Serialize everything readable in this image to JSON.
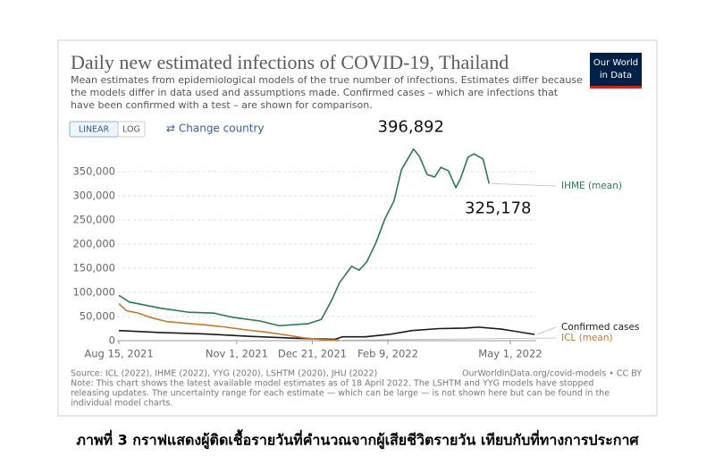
{
  "chart_data": {
    "type": "line",
    "title": "Daily new estimated infections of COVID-19, Thailand",
    "subtitle": [
      "Mean estimates from epidemiological models of the true number of infections. Estimates differ because",
      "the models differ in data used and assumptions made. Confirmed cases – which are infections that",
      "have been confirmed with a test – are shown for comparison."
    ],
    "logo": [
      "Our World",
      "in Data"
    ],
    "buttons": [
      "LINEAR",
      "LOG"
    ],
    "change_country": "⇄ Change country",
    "xlim": [
      "2021-08-15",
      "2022-05-17"
    ],
    "xticks": [
      {
        "value": "2021-08-15",
        "label": "Aug 15, 2021"
      },
      {
        "value": "2021-11-01",
        "label": "Nov 1, 2021"
      },
      {
        "value": "2021-12-21",
        "label": "Dec 21, 2021"
      },
      {
        "value": "2022-02-09",
        "label": "Feb 9, 2022"
      },
      {
        "value": "2022-05-01",
        "label": "May 1, 2022"
      }
    ],
    "ylim": [
      0,
      400000
    ],
    "yticks": [
      0,
      {
        "value": 50000,
        "label": "50,000"
      },
      {
        "value": 100000,
        "label": "100,000"
      },
      {
        "value": 150000,
        "label": "150,000"
      },
      {
        "value": 200000,
        "label": "200,000"
      },
      {
        "value": 250000,
        "label": "250,000"
      },
      {
        "value": 300000,
        "label": "300,000"
      },
      {
        "value": 350000,
        "label": "350,000"
      }
    ],
    "grid": true,
    "series": [
      {
        "name": "IHME (mean)",
        "color": "#2a7a4f",
        "x": [
          "2021-08-15",
          "2021-08-22",
          "2021-09-12",
          "2021-09-30",
          "2021-10-17",
          "2021-10-30",
          "2021-11-16",
          "2021-11-29",
          "2021-12-18",
          "2021-12-27",
          "2022-01-03",
          "2022-01-08",
          "2022-01-16",
          "2022-01-21",
          "2022-01-26",
          "2022-02-01",
          "2022-02-07",
          "2022-02-13",
          "2022-02-18",
          "2022-02-26",
          "2022-03-02",
          "2022-03-07",
          "2022-03-12",
          "2022-03-16",
          "2022-03-21",
          "2022-03-26",
          "2022-03-29",
          "2022-04-03",
          "2022-04-07",
          "2022-04-13",
          "2022-04-17"
        ],
        "values": [
          94000,
          80000,
          67000,
          59000,
          57000,
          48000,
          41000,
          31000,
          35000,
          44000,
          85000,
          120000,
          154000,
          146000,
          163000,
          202000,
          252000,
          289000,
          354000,
          396892,
          381000,
          344000,
          339000,
          359000,
          352000,
          317000,
          335000,
          380000,
          387000,
          376000,
          325178
        ]
      },
      {
        "name": "Confirmed cases",
        "color": "#1a1a1a",
        "x": [
          "2021-08-15",
          "2021-09-10",
          "2021-10-10",
          "2021-11-10",
          "2021-12-10",
          "2021-12-25",
          "2022-01-05",
          "2022-01-10",
          "2022-01-25",
          "2022-02-10",
          "2022-02-25",
          "2022-03-15",
          "2022-04-01",
          "2022-04-10",
          "2022-04-25",
          "2022-05-05",
          "2022-05-17"
        ],
        "values": [
          21000,
          17000,
          14000,
          9000,
          5000,
          3500,
          3000,
          8000,
          8000,
          13000,
          21000,
          25000,
          26000,
          28000,
          24000,
          19000,
          13000
        ]
      },
      {
        "name": "ICL (mean)",
        "color": "#c27a2c",
        "x": [
          "2021-08-15",
          "2021-08-20",
          "2021-08-28",
          "2021-09-05",
          "2021-09-15",
          "2021-09-28",
          "2021-10-10",
          "2021-10-25",
          "2021-11-08",
          "2021-11-20",
          "2021-12-03",
          "2021-12-15",
          "2021-12-28",
          "2022-01-08"
        ],
        "values": [
          77000,
          62000,
          57000,
          48000,
          40000,
          36000,
          33000,
          28000,
          22000,
          18000,
          12000,
          6000,
          2000,
          1000
        ]
      }
    ],
    "annotations": [
      {
        "value": 396892,
        "label": "396,892"
      },
      {
        "value": 325178,
        "label": "325,178"
      }
    ],
    "source": "Source: ICL (2022), IHME (2022), YYG (2020), LSHTM (2020), JHU (2022)",
    "url": "OurWorldInData.org/covid-models • CC BY",
    "note": [
      "Note: This chart shows the latest available model estimates as of 18 April 2022. The LSHTM and YYG models have stopped",
      "releasing updates. The uncertainty range for each estimate — which can be large — is not shown here but can be found in the",
      "individual model charts."
    ]
  },
  "caption": "ภาพที่ 3 กราฟแสดงผู้ติดเชื้อรายวันที่คำนวณจากผู้เสียชีวิตรายวัน เทียบกับที่ทางการประกาศ"
}
